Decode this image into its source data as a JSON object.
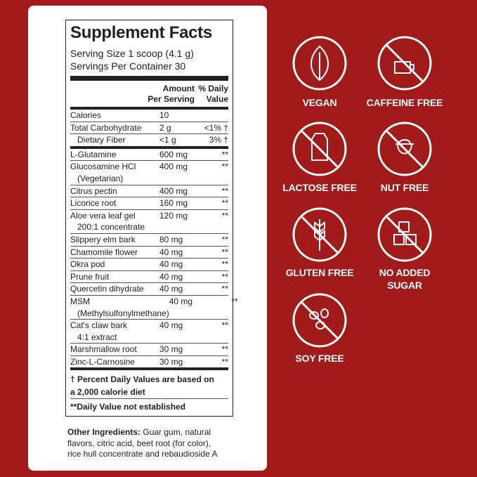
{
  "facts": {
    "title": "Supplement Facts",
    "serving_size": "Serving Size 1 scoop (4.1 g)",
    "servings_per_container": "Servings Per Container 30",
    "header": {
      "amount": [
        "Amount",
        "Per Serving"
      ],
      "dv": [
        "% Daily",
        "Value"
      ]
    },
    "rows_top": [
      {
        "name": [
          "Calories"
        ],
        "amount": "10"
      },
      {
        "name": [
          "Total Carbohydrate"
        ],
        "amount": "2 g",
        "dv": "<1% †"
      },
      {
        "name": [
          "Dietary Fiber"
        ],
        "amount": "<1 g",
        "dv": "3% †"
      }
    ],
    "rows": [
      {
        "name": [
          "L-Glutamine"
        ],
        "amount": "600 mg",
        "dv": "**"
      },
      {
        "name": [
          "Glucosamine HCl",
          "(Vegetarian)"
        ],
        "amount": "400 mg",
        "dv": "**"
      },
      {
        "name": [
          "Citrus pectin"
        ],
        "amount": "400 mg",
        "dv": "**"
      },
      {
        "name": [
          "Licorice root"
        ],
        "amount": "160 mg",
        "dv": "**"
      },
      {
        "name": [
          "Aloe vera leaf gel",
          "200:1 concentrate"
        ],
        "amount": "120 mg",
        "dv": "**"
      },
      {
        "name": [
          "Slippery elm bark"
        ],
        "amount": "80 mg",
        "dv": "**"
      },
      {
        "name": [
          "Chamomile flower"
        ],
        "amount": "40 mg",
        "dv": "**"
      },
      {
        "name": [
          "Okra pod"
        ],
        "amount": "40 mg",
        "dv": "**"
      },
      {
        "name": [
          "Prune fruit"
        ],
        "amount": "40 mg",
        "dv": "**"
      },
      {
        "name": [
          "Quercetin dihydrate"
        ],
        "amount": "40 mg",
        "dv": "**"
      },
      {
        "name": [
          "MSM",
          "(Methylsulfonylmethane)"
        ],
        "amount": "40 mg",
        "dv": "**"
      },
      {
        "name": [
          "Cat's claw bark",
          "4:1 extract"
        ],
        "amount": "40 mg",
        "dv": "**"
      },
      {
        "name": [
          "Marshmallow root"
        ],
        "amount": "30 mg",
        "dv": "**"
      },
      {
        "name": [
          "Zinc-L-Carnosine"
        ],
        "amount": "30 mg",
        "dv": "**"
      }
    ],
    "footnote_dv": [
      "† Percent Daily Values are based on",
      "a 2,000 calorie diet"
    ],
    "footnote_star": "**Daily Value not established",
    "other_label": "Other Ingredients:",
    "other_text": [
      "Guar gum, natural",
      "flavors, citric acid, beet root (for color),",
      "rice hull concentrate and rebaudioside A"
    ]
  },
  "badges": [
    {
      "label": [
        "VEGAN"
      ]
    },
    {
      "label": [
        "CAFFEINE FREE"
      ]
    },
    {
      "label": [
        "LACTOSE FREE"
      ]
    },
    {
      "label": [
        "NUT FREE"
      ]
    },
    {
      "label": [
        "GLUTEN FREE"
      ]
    },
    {
      "label": [
        "NO ADDED",
        "SUGAR"
      ]
    },
    {
      "label": [
        "SOY FREE"
      ]
    }
  ]
}
